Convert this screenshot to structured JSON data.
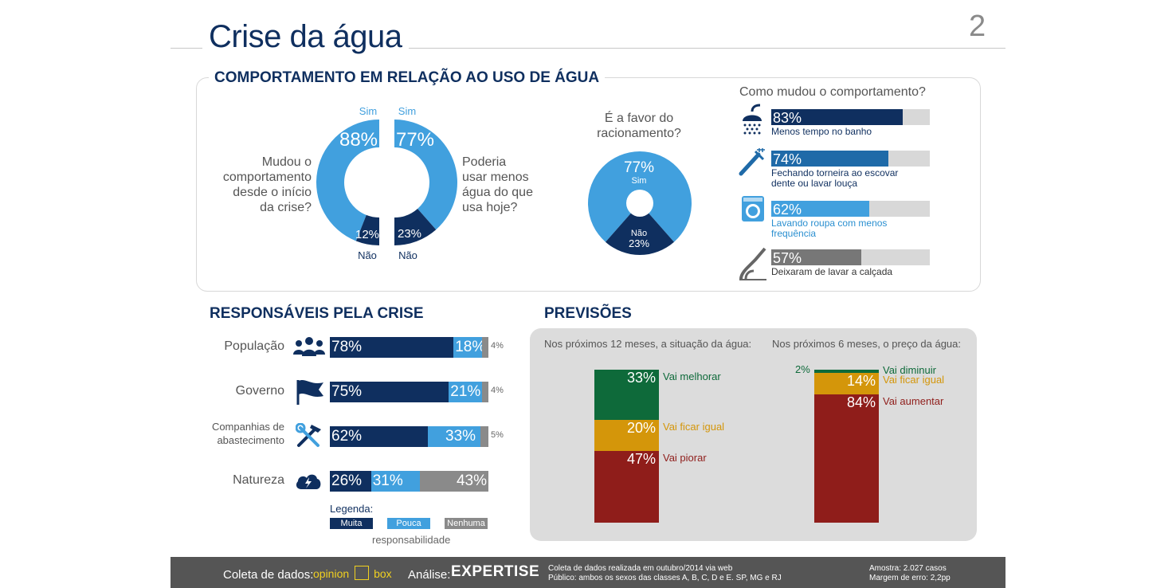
{
  "header": {
    "title": "Crise da água",
    "page_number": "2"
  },
  "behavior": {
    "section_title": "COMPORTAMENTO EM RELAÇÃO AO USO DE ÁGUA",
    "donut1": {
      "question": [
        "Mudou o",
        "comportamento",
        "desde o início",
        "da crise?"
      ],
      "yes_label": "Sim",
      "yes_pct": "88%",
      "no_label": "Não",
      "no_pct": "12%",
      "yes_value": 88,
      "no_value": 12
    },
    "donut2": {
      "question": [
        "Poderia",
        "usar menos",
        "água do que",
        "usa hoje?"
      ],
      "yes_label": "Sim",
      "yes_pct": "77%",
      "no_label": "Não",
      "no_pct": "23%",
      "yes_value": 77,
      "no_value": 23
    },
    "rationing": {
      "question": [
        "É a favor do",
        "racionamento?"
      ],
      "yes_pct": "77%",
      "yes_label": "Sim",
      "no_label": "Não",
      "no_pct": "23%",
      "yes_value": 77,
      "no_value": 23
    },
    "changes": {
      "title": "Como mudou o comportamento?",
      "items": [
        {
          "pct": "83%",
          "value": 83,
          "label": [
            "Menos tempo no banho"
          ],
          "color": "#0f2f5f",
          "label_color": "#0f2f5f",
          "icon": "shower-icon"
        },
        {
          "pct": "74%",
          "value": 74,
          "label": [
            "Fechando torneira ao escovar",
            "dente ou lavar louça"
          ],
          "color": "#1f6aa8",
          "label_color": "#0f2f5f",
          "icon": "toothbrush-icon"
        },
        {
          "pct": "62%",
          "value": 62,
          "label": [
            "Lavando roupa com menos",
            "frequência"
          ],
          "color": "#41a0de",
          "label_color": "#2a8fd0",
          "icon": "washing-machine-icon"
        },
        {
          "pct": "57%",
          "value": 57,
          "label": [
            "Deixaram de lavar a calçada"
          ],
          "color": "#777777",
          "label_color": "#333333",
          "icon": "hose-icon"
        }
      ]
    }
  },
  "responsible": {
    "section_title": "RESPONSÁVEIS PELA CRISE",
    "rows": [
      {
        "label": [
          "População"
        ],
        "icon": "people-icon",
        "muita": 78,
        "pouca": 18,
        "nenhuma": 4,
        "muita_pct": "78%",
        "pouca_pct": "18%",
        "nenhuma_pct": "4%"
      },
      {
        "label": [
          "Governo"
        ],
        "icon": "flag-icon",
        "muita": 75,
        "pouca": 21,
        "nenhuma": 4,
        "muita_pct": "75%",
        "pouca_pct": "21%",
        "nenhuma_pct": "4%"
      },
      {
        "label": [
          "Companhias de",
          "abastecimento"
        ],
        "icon": "tools-icon",
        "muita": 62,
        "pouca": 33,
        "nenhuma": 5,
        "muita_pct": "62%",
        "pouca_pct": "33%",
        "nenhuma_pct": "5%"
      },
      {
        "label": [
          "Natureza"
        ],
        "icon": "storm-cloud-icon",
        "muita": 26,
        "pouca": 31,
        "nenhuma": 43,
        "muita_pct": "26%",
        "pouca_pct": "31%",
        "nenhuma_pct": "43%"
      }
    ],
    "legend": {
      "title": "Legenda:",
      "muita": "Muita",
      "pouca": "Pouca",
      "nenhuma": "Nenhuma",
      "footer": "responsabilidade"
    }
  },
  "forecast": {
    "section_title": "PREVISÕES",
    "situation": {
      "question": "Nos próximos 12 meses, a situação da água:",
      "segments": [
        {
          "pct": "33%",
          "value": 33,
          "label": "Vai melhorar",
          "color": "#0e6a3a",
          "label_color": "#0e6a3a"
        },
        {
          "pct": "20%",
          "value": 20,
          "label": "Vai ficar igual",
          "color": "#d4960a",
          "label_color": "#d4960a"
        },
        {
          "pct": "47%",
          "value": 47,
          "label": "Vai piorar",
          "color": "#8f1d1a",
          "label_color": "#8f1d1a"
        }
      ]
    },
    "price": {
      "question": "Nos próximos 6 meses, o preço da água:",
      "segments": [
        {
          "pct": "2%",
          "value": 2,
          "label": "Vai diminuir",
          "color": "#0e6a3a",
          "label_color": "#0e6a3a"
        },
        {
          "pct": "14%",
          "value": 14,
          "label": "Vai ficar igual",
          "color": "#d4960a",
          "label_color": "#d4960a"
        },
        {
          "pct": "84%",
          "value": 84,
          "label": "Vai aumentar",
          "color": "#8f1d1a",
          "label_color": "#8f1d1a"
        }
      ]
    }
  },
  "footer": {
    "collection_label": "Coleta de dados:",
    "collection_brand_left": "opinion",
    "collection_brand_right": "box",
    "analysis_label": "Análise:",
    "analysis_brand": "EXPERTISE",
    "method_line1": "Coleta de dados realizada em outubro/2014 via web",
    "method_line2": "Público: ambos os sexos das classes A, B, C, D e E. SP, MG e RJ",
    "sample": "Amostra: 2.027 casos",
    "margin": "Margem de erro: 2,2pp"
  },
  "colors": {
    "navy": "#0f2f5f",
    "light_blue": "#41a0de",
    "gray": "#8a8a8a",
    "panel_gray": "#dcdcdc",
    "footer_bg": "#555555"
  }
}
